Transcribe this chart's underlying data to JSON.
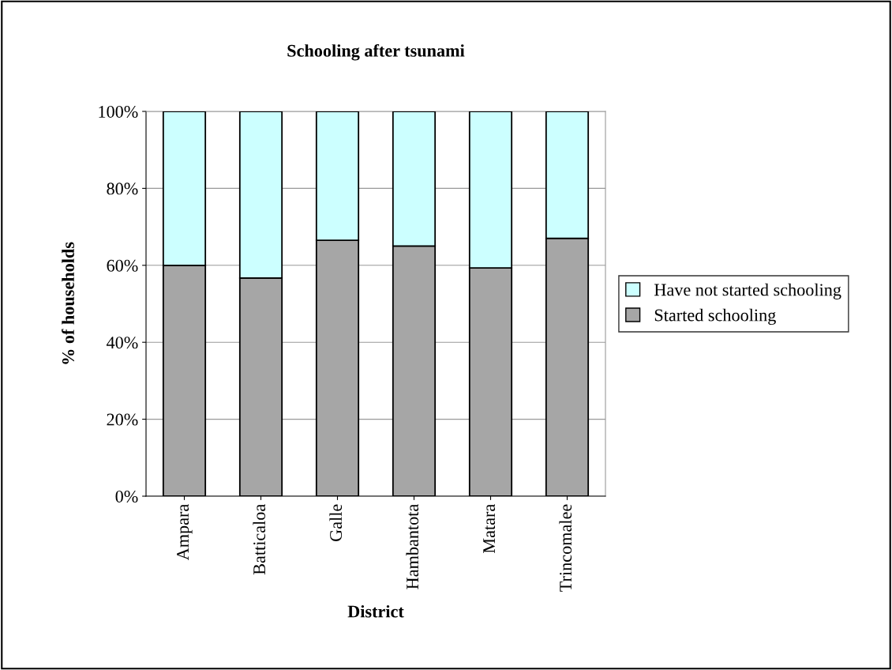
{
  "chart_data": {
    "type": "bar",
    "title": "Schooling after tsunami",
    "xlabel": "District",
    "ylabel": "% of households",
    "categories": [
      "Ampara",
      "Batticaloa",
      "Galle",
      "Hambantota",
      "Matara",
      "Trincomalee"
    ],
    "stacked": true,
    "series": [
      {
        "name": "Started schooling",
        "color": "#a6a6a6",
        "values": [
          60,
          56.7,
          66.5,
          65,
          59.3,
          67
        ]
      },
      {
        "name": "Have not started schooling",
        "color": "#ccffff",
        "values": [
          40,
          43.3,
          33.5,
          35,
          40.7,
          33
        ]
      }
    ],
    "ylim": [
      0,
      100
    ],
    "yticks": [
      {
        "value": 0,
        "label": "0%"
      },
      {
        "value": 20,
        "label": "20%"
      },
      {
        "value": 40,
        "label": "40%"
      },
      {
        "value": 60,
        "label": "60%"
      },
      {
        "value": 80,
        "label": "80%"
      },
      {
        "value": 100,
        "label": "100%"
      }
    ],
    "grid": "y",
    "legend": "right"
  }
}
